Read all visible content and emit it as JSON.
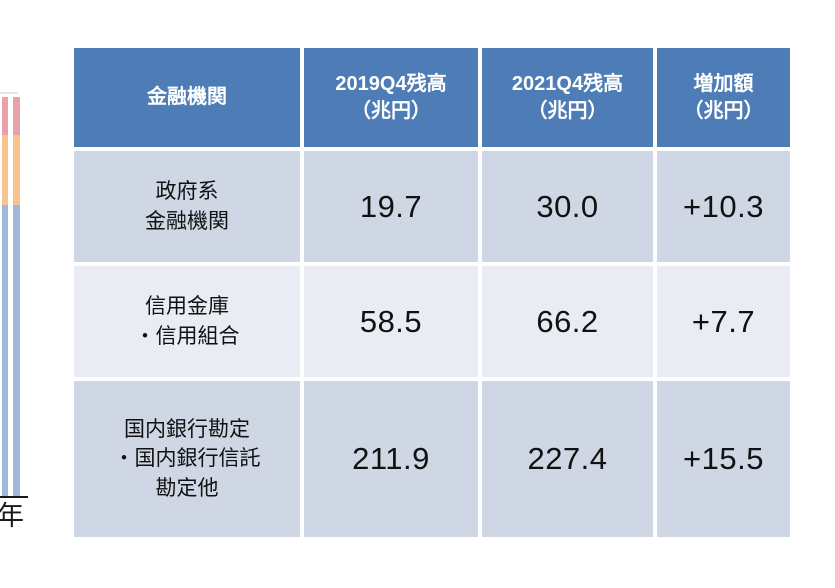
{
  "colors": {
    "header_bg": "#4d7cb6",
    "header_text": "#ffffff",
    "row_band_dark": "#cfd7e4",
    "row_band_light": "#e9ecf3",
    "bar_segment_top": "#e9a2ac",
    "bar_segment_middle": "#f7c48d",
    "bar_segment_bottom": "#9fb8d9"
  },
  "chart_fragment": {
    "axis_tick_label": "年",
    "type": "stacked-bar-sliver"
  },
  "table": {
    "headers": [
      "金融機関",
      "2019Q4残高\n（兆円）",
      "2021Q4残高\n（兆円）",
      "増加額\n（兆円）"
    ],
    "rows": [
      {
        "institution": "政府系\n金融機関",
        "q4_2019": "19.7",
        "q4_2021": "30.0",
        "increase": "+10.3"
      },
      {
        "institution": "信用金庫\n・信用組合",
        "q4_2019": "58.5",
        "q4_2021": "66.2",
        "increase": "+7.7"
      },
      {
        "institution": "国内銀行勘定\n・国内銀行信託\n勘定他",
        "q4_2019": "211.9",
        "q4_2021": "227.4",
        "increase": "+15.5"
      }
    ]
  },
  "chart_data": {
    "type": "table",
    "columns": [
      "金融機関",
      "2019Q4残高（兆円）",
      "2021Q4残高（兆円）",
      "増加額（兆円）"
    ],
    "rows": [
      [
        "政府系金融機関",
        19.7,
        30.0,
        "+10.3"
      ],
      [
        "信用金庫・信用組合",
        58.5,
        66.2,
        "+7.7"
      ],
      [
        "国内銀行勘定・国内銀行信託勘定他",
        211.9,
        227.4,
        "+15.5"
      ]
    ],
    "companion_chart": {
      "type": "bar",
      "note_visible_elements": "two stacked bars cropped at left edge, segments pink/orange/blue, x-axis tick label ending in 年"
    }
  }
}
